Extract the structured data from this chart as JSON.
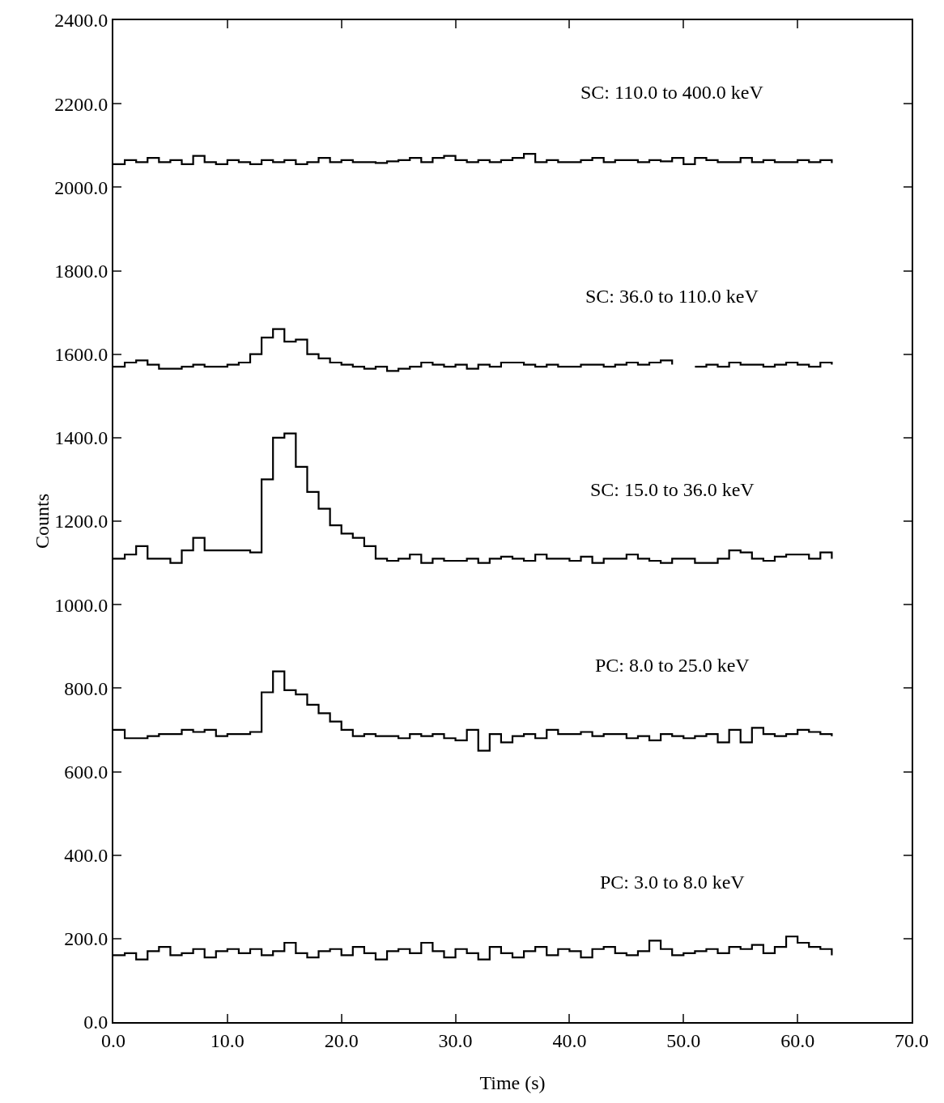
{
  "chart_data": {
    "type": "step",
    "xlabel": "Time (s)",
    "ylabel": "Counts",
    "x": [
      0,
      1,
      2,
      3,
      4,
      5,
      6,
      7,
      8,
      9,
      10,
      11,
      12,
      13,
      14,
      15,
      16,
      17,
      18,
      19,
      20,
      21,
      22,
      23,
      24,
      25,
      26,
      27,
      28,
      29,
      30,
      31,
      32,
      33,
      34,
      35,
      36,
      37,
      38,
      39,
      40,
      41,
      42,
      43,
      44,
      45,
      46,
      47,
      48,
      49,
      50,
      51,
      52,
      53,
      54,
      55,
      56,
      57,
      58,
      59,
      60,
      61,
      62,
      63
    ],
    "series": [
      {
        "name": "SC: 110.0 to 400.0 keV",
        "color": "#000000",
        "values": [
          2055,
          2065,
          2060,
          2070,
          2060,
          2065,
          2055,
          2075,
          2060,
          2055,
          2065,
          2060,
          2055,
          2065,
          2060,
          2065,
          2055,
          2060,
          2070,
          2060,
          2065,
          2060,
          2060,
          2058,
          2062,
          2065,
          2070,
          2060,
          2070,
          2075,
          2065,
          2060,
          2065,
          2060,
          2065,
          2070,
          2080,
          2060,
          2065,
          2060,
          2060,
          2065,
          2070,
          2060,
          2065,
          2065,
          2060,
          2065,
          2062,
          2070,
          2055,
          2070,
          2065,
          2060,
          2060,
          2070,
          2060,
          2065,
          2060,
          2060,
          2065,
          2060,
          2065,
          2058
        ]
      },
      {
        "name": "SC: 36.0 to 110.0 keV",
        "color": "#000000",
        "values": [
          1570,
          1580,
          1585,
          1575,
          1565,
          1565,
          1570,
          1575,
          1570,
          1570,
          1575,
          1580,
          1600,
          1640,
          1660,
          1630,
          1635,
          1600,
          1590,
          1580,
          1575,
          1570,
          1565,
          1570,
          1560,
          1565,
          1570,
          1580,
          1575,
          1570,
          1575,
          1565,
          1575,
          1570,
          1580,
          1580,
          1575,
          1570,
          1575,
          1570,
          1570,
          1575,
          1575,
          1570,
          1575,
          1580,
          1575,
          1580,
          1585,
          1575,
          null,
          1570,
          1575,
          1570,
          1580,
          1575,
          1575,
          1570,
          1575,
          1580,
          1575,
          1570,
          1580,
          1575
        ]
      },
      {
        "name": "SC: 15.0 to 36.0 keV",
        "color": "#000000",
        "values": [
          1110,
          1120,
          1140,
          1110,
          1110,
          1100,
          1130,
          1160,
          1130,
          1130,
          1130,
          1130,
          1125,
          1300,
          1400,
          1410,
          1330,
          1270,
          1230,
          1190,
          1170,
          1160,
          1140,
          1110,
          1105,
          1110,
          1120,
          1100,
          1110,
          1105,
          1105,
          1110,
          1100,
          1110,
          1115,
          1110,
          1105,
          1120,
          1110,
          1110,
          1105,
          1115,
          1100,
          1110,
          1110,
          1120,
          1110,
          1105,
          1100,
          1110,
          1110,
          1100,
          1100,
          1110,
          1130,
          1125,
          1110,
          1105,
          1115,
          1120,
          1120,
          1110,
          1125,
          1110
        ]
      },
      {
        "name": "PC: 8.0 to 25.0 keV",
        "color": "#000000",
        "values": [
          700,
          680,
          680,
          685,
          690,
          690,
          700,
          695,
          700,
          685,
          690,
          690,
          695,
          790,
          840,
          795,
          785,
          760,
          740,
          720,
          700,
          685,
          690,
          685,
          685,
          680,
          690,
          685,
          690,
          680,
          675,
          700,
          650,
          690,
          670,
          685,
          690,
          680,
          700,
          690,
          690,
          695,
          685,
          690,
          690,
          680,
          685,
          675,
          690,
          685,
          680,
          685,
          690,
          670,
          700,
          670,
          705,
          690,
          685,
          690,
          700,
          695,
          690,
          685
        ]
      },
      {
        "name": "PC: 3.0 to 8.0 keV",
        "color": "#000000",
        "values": [
          160,
          165,
          150,
          170,
          180,
          160,
          165,
          175,
          155,
          170,
          175,
          165,
          175,
          160,
          170,
          190,
          165,
          155,
          170,
          175,
          160,
          180,
          165,
          150,
          170,
          175,
          165,
          190,
          170,
          155,
          175,
          165,
          150,
          180,
          165,
          155,
          170,
          180,
          160,
          175,
          170,
          155,
          175,
          180,
          165,
          160,
          170,
          195,
          175,
          160,
          165,
          170,
          175,
          165,
          180,
          175,
          185,
          165,
          180,
          205,
          190,
          180,
          175,
          160
        ]
      }
    ],
    "xlim": [
      0,
      70
    ],
    "xticks": [
      {
        "value": 0,
        "label": "0.0"
      },
      {
        "value": 10,
        "label": "10.0"
      },
      {
        "value": 20,
        "label": "20.0"
      },
      {
        "value": 30,
        "label": "30.0"
      },
      {
        "value": 40,
        "label": "40.0"
      },
      {
        "value": 50,
        "label": "50.0"
      },
      {
        "value": 60,
        "label": "60.0"
      },
      {
        "value": 70,
        "label": "70.0"
      }
    ],
    "ylim": [
      0,
      2400
    ],
    "yticks": [
      {
        "value": 0,
        "label": "0.0"
      },
      {
        "value": 200,
        "label": "200.0"
      },
      {
        "value": 400,
        "label": "400.0"
      },
      {
        "value": 600,
        "label": "600.0"
      },
      {
        "value": 800,
        "label": "800.0"
      },
      {
        "value": 1000,
        "label": "1000.0"
      },
      {
        "value": 1200,
        "label": "1200.0"
      },
      {
        "value": 1400,
        "label": "1400.0"
      },
      {
        "value": 1600,
        "label": "1600.0"
      },
      {
        "value": 1800,
        "label": "1800.0"
      },
      {
        "value": 2000,
        "label": "2000.0"
      },
      {
        "value": 2200,
        "label": "2200.0"
      },
      {
        "value": 2400,
        "label": "2400.0"
      }
    ],
    "grid": false,
    "legend": false,
    "line_style": "solid",
    "marker": "none"
  }
}
